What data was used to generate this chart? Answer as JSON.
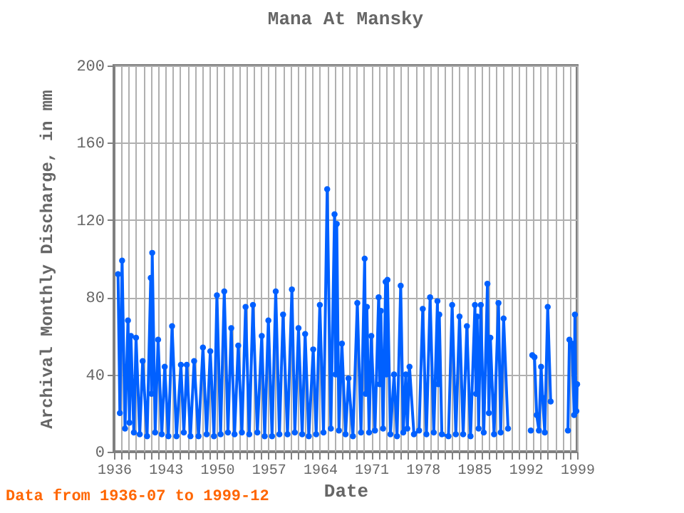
{
  "chart_data": {
    "type": "line",
    "title": "Mana At Mansky",
    "xlabel": "Date",
    "ylabel": "Archival Monthly Discharge, in mm",
    "annotations": [
      "Data from 1936-07 to 1999-12"
    ],
    "x": [
      1936.55,
      1936.8,
      1937.1,
      1937.5,
      1937.9,
      1938.1,
      1938.3,
      1938.7,
      1939.0,
      1939.5,
      1939.9,
      1940.5,
      1941.0,
      1941.1,
      1941.2,
      1941.6,
      1942.0,
      1942.5,
      1942.9,
      1943.4,
      1943.9,
      1944.5,
      1945.1,
      1945.5,
      1945.9,
      1946.4,
      1946.9,
      1947.5,
      1948.1,
      1948.6,
      1949.1,
      1949.6,
      1950.0,
      1950.5,
      1951.0,
      1951.5,
      1951.95,
      1952.4,
      1952.9,
      1953.4,
      1953.9,
      1954.4,
      1954.9,
      1955.5,
      1956.1,
      1956.5,
      1957.0,
      1957.5,
      1958.0,
      1958.5,
      1959.0,
      1959.6,
      1960.2,
      1960.6,
      1961.1,
      1961.6,
      1962.0,
      1962.5,
      1963.1,
      1963.5,
      1964.0,
      1964.5,
      1965.0,
      1965.5,
      1966.0,
      1966.15,
      1966.3,
      1966.6,
      1967.0,
      1967.5,
      1967.9,
      1968.5,
      1969.1,
      1969.6,
      1970.1,
      1970.25,
      1970.4,
      1970.7,
      1971.0,
      1971.5,
      1972.0,
      1972.15,
      1972.3,
      1972.6,
      1972.95,
      1973.05,
      1973.2,
      1973.6,
      1974.1,
      1974.5,
      1975.0,
      1975.35,
      1975.7,
      1975.9,
      1976.2,
      1976.8,
      1977.5,
      1978.0,
      1978.5,
      1979.0,
      1979.5,
      1980.0,
      1980.1,
      1980.25,
      1980.6,
      1981.5,
      1982.0,
      1982.5,
      1983.0,
      1983.5,
      1984.0,
      1984.5,
      1985.1,
      1985.25,
      1985.4,
      1985.6,
      1985.9,
      1986.3,
      1986.8,
      1987.0,
      1987.2,
      1987.7,
      1988.3,
      1988.6,
      1989.0,
      1989.6,
      1990.0,
      1992.7,
      1992.8,
      1992.9,
      1993.2,
      1993.5,
      1993.8,
      1994.1,
      1994.3,
      1994.6,
      1995.0,
      1995.4,
      1996.5,
      1997.75,
      1997.95,
      1998.3,
      1998.6,
      1998.7,
      1998.8,
      1998.9,
      1999.0
    ],
    "series": [
      {
        "color": "#0060ff",
        "values": [
          92,
          20,
          99,
          12,
          68,
          15,
          60,
          10,
          59,
          9,
          47,
          8,
          90,
          30,
          103,
          10,
          58,
          9,
          44,
          8,
          65,
          8,
          45,
          10,
          45,
          8,
          47,
          8,
          54,
          9,
          52,
          8,
          81,
          9,
          83,
          10,
          64,
          9,
          55,
          10,
          75,
          9,
          76,
          10,
          60,
          8,
          68,
          8,
          83,
          9,
          71,
          9,
          84,
          10,
          64,
          9,
          61,
          8,
          53,
          9,
          76,
          10,
          136,
          12,
          123,
          40,
          118,
          11,
          56,
          9,
          38,
          8,
          77,
          10,
          100,
          30,
          75,
          10,
          60,
          11,
          80,
          35,
          73,
          12,
          88,
          40,
          89,
          9,
          40,
          8,
          86,
          10,
          40,
          12,
          44,
          9,
          11,
          74,
          9,
          80,
          10,
          78,
          35,
          71,
          9,
          8,
          76,
          9,
          70,
          9,
          65,
          8,
          76,
          30,
          70,
          12,
          76,
          10,
          87,
          20,
          59,
          9,
          77,
          10,
          69,
          12,
          null,
          11,
          null,
          50,
          49,
          19,
          11,
          44,
          28,
          10,
          75,
          26,
          null,
          11,
          58,
          56,
          19,
          71,
          35,
          21,
          35
        ]
      }
    ],
    "xlim": [
      1936,
      1999
    ],
    "ylim": [
      0,
      200
    ],
    "xticks": [
      1936,
      {
        "value": 1937,
        "label": null
      },
      {
        "value": 1938,
        "label": null
      },
      {
        "value": 1939,
        "label": null
      },
      {
        "value": 1940,
        "label": null
      },
      {
        "value": 1941,
        "label": null
      },
      {
        "value": 1942,
        "label": null
      },
      1943,
      {
        "value": 1944,
        "label": null
      },
      {
        "value": 1945,
        "label": null
      },
      {
        "value": 1946,
        "label": null
      },
      {
        "value": 1947,
        "label": null
      },
      {
        "value": 1948,
        "label": null
      },
      {
        "value": 1949,
        "label": null
      },
      1950,
      {
        "value": 1951,
        "label": null
      },
      {
        "value": 1952,
        "label": null
      },
      {
        "value": 1953,
        "label": null
      },
      {
        "value": 1954,
        "label": null
      },
      {
        "value": 1955,
        "label": null
      },
      {
        "value": 1956,
        "label": null
      },
      1957,
      {
        "value": 1958,
        "label": null
      },
      {
        "value": 1959,
        "label": null
      },
      {
        "value": 1960,
        "label": null
      },
      {
        "value": 1961,
        "label": null
      },
      {
        "value": 1962,
        "label": null
      },
      {
        "value": 1963,
        "label": null
      },
      1964,
      {
        "value": 1965,
        "label": null
      },
      {
        "value": 1966,
        "label": null
      },
      {
        "value": 1967,
        "label": null
      },
      {
        "value": 1968,
        "label": null
      },
      {
        "value": 1969,
        "label": null
      },
      {
        "value": 1970,
        "label": null
      },
      1971,
      {
        "value": 1972,
        "label": null
      },
      {
        "value": 1973,
        "label": null
      },
      {
        "value": 1974,
        "label": null
      },
      {
        "value": 1975,
        "label": null
      },
      {
        "value": 1976,
        "label": null
      },
      {
        "value": 1977,
        "label": null
      },
      1978,
      {
        "value": 1979,
        "label": null
      },
      {
        "value": 1980,
        "label": null
      },
      {
        "value": 1981,
        "label": null
      },
      {
        "value": 1982,
        "label": null
      },
      {
        "value": 1983,
        "label": null
      },
      {
        "value": 1984,
        "label": null
      },
      1985,
      {
        "value": 1986,
        "label": null
      },
      {
        "value": 1987,
        "label": null
      },
      {
        "value": 1988,
        "label": null
      },
      {
        "value": 1989,
        "label": null
      },
      {
        "value": 1990,
        "label": null
      },
      {
        "value": 1991,
        "label": null
      },
      1992,
      {
        "value": 1993,
        "label": null
      },
      {
        "value": 1994,
        "label": null
      },
      {
        "value": 1995,
        "label": null
      },
      {
        "value": 1996,
        "label": null
      },
      {
        "value": 1997,
        "label": null
      },
      {
        "value": 1998,
        "label": null
      },
      1999
    ],
    "yticks": [
      0,
      40,
      80,
      120,
      160,
      200
    ],
    "grid": true,
    "marker": "circle",
    "line_style": "solid"
  }
}
